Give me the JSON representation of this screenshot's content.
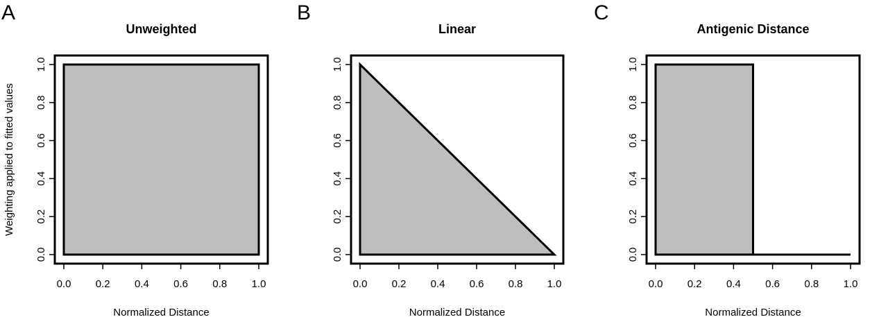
{
  "colors": {
    "fill": "#bebebe",
    "line": "#000000",
    "background": "#ffffff"
  },
  "ylabel": "Weighting applied to fitted values",
  "chart_data": [
    {
      "type": "area",
      "panel_letter": "A",
      "title": "Unweighted",
      "xlabel": "Normalized Distance",
      "xlim": [
        0,
        1
      ],
      "ylim": [
        0,
        1
      ],
      "x": [
        0,
        1
      ],
      "y": [
        1,
        1
      ],
      "xticks": [
        "0.0",
        "0.2",
        "0.4",
        "0.6",
        "0.8",
        "1.0"
      ],
      "yticks": [
        "0.0",
        "0.2",
        "0.4",
        "0.6",
        "0.8",
        "1.0"
      ],
      "grid": false
    },
    {
      "type": "area",
      "panel_letter": "B",
      "title": "Linear",
      "xlabel": "Normalized Distance",
      "xlim": [
        0,
        1
      ],
      "ylim": [
        0,
        1
      ],
      "x": [
        0,
        1
      ],
      "y": [
        1,
        0
      ],
      "xticks": [
        "0.0",
        "0.2",
        "0.4",
        "0.6",
        "0.8",
        "1.0"
      ],
      "yticks": [
        "0.0",
        "0.2",
        "0.4",
        "0.6",
        "0.8",
        "1.0"
      ],
      "grid": false
    },
    {
      "type": "area",
      "panel_letter": "C",
      "title": "Antigenic Distance",
      "xlabel": "Normalized Distance",
      "xlim": [
        0,
        1
      ],
      "ylim": [
        0,
        1
      ],
      "x": [
        0,
        0.5,
        0.5,
        1
      ],
      "y": [
        1,
        1,
        0,
        0
      ],
      "xticks": [
        "0.0",
        "0.2",
        "0.4",
        "0.6",
        "0.8",
        "1.0"
      ],
      "yticks": [
        "0.0",
        "0.2",
        "0.4",
        "0.6",
        "0.8",
        "1.0"
      ],
      "grid": false
    }
  ]
}
